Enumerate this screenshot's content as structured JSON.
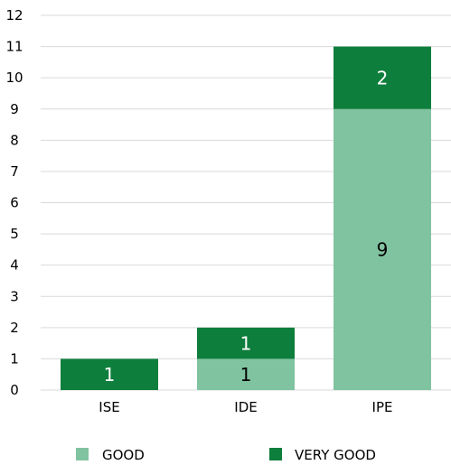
{
  "chart_data": {
    "type": "bar",
    "stacked": true,
    "categories": [
      "ISE",
      "IDE",
      "IPE"
    ],
    "series": [
      {
        "name": "GOOD",
        "color": "#80c3a0",
        "values": [
          0,
          1,
          9
        ],
        "labels": [
          "",
          "1",
          "9"
        ],
        "label_color": "#000000"
      },
      {
        "name": "VERY GOOD",
        "color": "#0e7e3c",
        "values": [
          1,
          1,
          2
        ],
        "labels": [
          "1",
          "1",
          "2"
        ],
        "label_color": "#ffffff"
      }
    ],
    "ylim": [
      0,
      12
    ],
    "yticks": [
      "0",
      "1",
      "2",
      "3",
      "4",
      "5",
      "6",
      "7",
      "8",
      "9",
      "10",
      "11",
      "12"
    ],
    "grid": true,
    "gridColor": "#d9d9d9",
    "legend_position": "bottom",
    "title": "",
    "xlabel": "",
    "ylabel": ""
  }
}
